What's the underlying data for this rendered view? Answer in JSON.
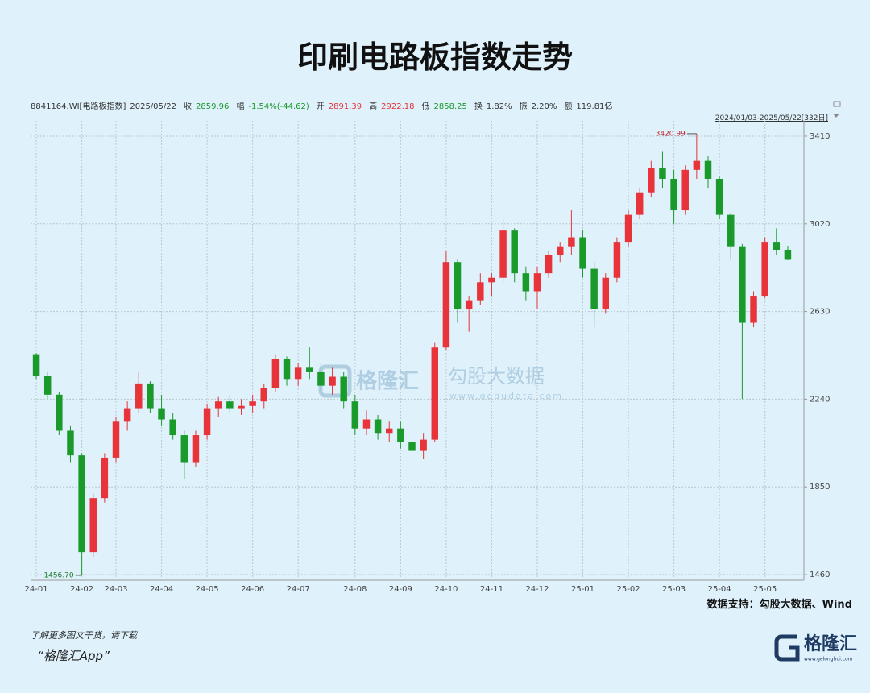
{
  "title": "印刷电路板指数走势",
  "info": [
    {
      "label": "8841164.WI[电路板指数]",
      "value": "2025/05/22",
      "color": "#333333"
    },
    {
      "label": "收",
      "value": "2859.96",
      "color": "#1a9a2a"
    },
    {
      "label": "幅",
      "value": "-1.54%(-44.62)",
      "color": "#1a9a2a"
    },
    {
      "label": "开",
      "value": "2891.39",
      "color": "#e8333a"
    },
    {
      "label": "高",
      "value": "2922.18",
      "color": "#e8333a"
    },
    {
      "label": "低",
      "value": "2858.25",
      "color": "#1a9a2a"
    },
    {
      "label": "换",
      "value": "1.82%",
      "color": "#333333"
    },
    {
      "label": "振",
      "value": "2.20%",
      "color": "#333333"
    },
    {
      "label": "额",
      "value": "119.81亿",
      "color": "#333333"
    }
  ],
  "range_label": "2024/01/03-2025/05/22[332日]",
  "watermark": {
    "brand": "格隆汇",
    "name": "勾股大数据",
    "url": "www.gogudata.com"
  },
  "source": "数据支持：勾股大数据、Wind",
  "footer": {
    "line1": "了解更多图文干货，请下载",
    "line2": "“格隆汇App”"
  },
  "logo": {
    "name": "格隆汇",
    "url": "www.gelonghui.com"
  },
  "chart_data": {
    "type": "candlestick",
    "categories": [
      "24-01",
      null,
      null,
      null,
      "24-02",
      null,
      null,
      "24-03",
      null,
      null,
      null,
      "24-04",
      null,
      null,
      null,
      "24-05",
      null,
      null,
      null,
      "24-06",
      null,
      null,
      null,
      "24-07",
      null,
      null,
      null,
      null,
      "24-08",
      null,
      null,
      null,
      "24-09",
      null,
      null,
      null,
      "24-10",
      null,
      null,
      null,
      "24-11",
      null,
      null,
      null,
      "24-12",
      null,
      null,
      null,
      "25-01",
      null,
      null,
      null,
      "25-02",
      null,
      null,
      null,
      "25-03",
      null,
      null,
      null,
      "25-04",
      null,
      null,
      null,
      "25-05",
      null,
      null
    ],
    "open": [
      2440,
      2345,
      2260,
      2100,
      1990,
      1560,
      1800,
      1980,
      2140,
      2200,
      2310,
      2200,
      2150,
      2080,
      1960,
      2080,
      2200,
      2230,
      2200,
      2210,
      2230,
      2290,
      2420,
      2330,
      2380,
      2360,
      2300,
      2340,
      2230,
      2110,
      2150,
      2090,
      2110,
      2050,
      2010,
      2060,
      2470,
      2850,
      2640,
      2680,
      2760,
      2780,
      2990,
      2800,
      2720,
      2800,
      2880,
      2920,
      2960,
      2820,
      2640,
      2780,
      2940,
      3060,
      3160,
      3270,
      3220,
      3080,
      3260,
      3300,
      3220,
      3060,
      2920,
      2580,
      2700,
      2940,
      2904.58
    ],
    "high": [
      2445,
      2360,
      2270,
      2120,
      2000,
      1820,
      2000,
      2160,
      2230,
      2360,
      2320,
      2260,
      2180,
      2100,
      2100,
      2220,
      2250,
      2260,
      2240,
      2260,
      2310,
      2440,
      2430,
      2400,
      2470,
      2400,
      2380,
      2360,
      2260,
      2190,
      2170,
      2140,
      2140,
      2080,
      2090,
      2490,
      2900,
      2860,
      2700,
      2800,
      2800,
      3040,
      3000,
      2830,
      2830,
      2900,
      2940,
      3080,
      2990,
      2850,
      2800,
      2960,
      3080,
      3180,
      3300,
      3340,
      3260,
      3280,
      3420.99,
      3320,
      3230,
      3070,
      2930,
      2720,
      2960,
      3000,
      2922.18
    ],
    "low": [
      2330,
      2240,
      2080,
      1960,
      1456.7,
      1540,
      1780,
      1960,
      2100,
      2180,
      2180,
      2120,
      2060,
      1885,
      1940,
      2060,
      2160,
      2180,
      2170,
      2180,
      2200,
      2270,
      2300,
      2300,
      2330,
      2280,
      2260,
      2200,
      2080,
      2080,
      2060,
      2050,
      2020,
      1990,
      1975,
      2050,
      2460,
      2580,
      2540,
      2660,
      2700,
      2760,
      2760,
      2680,
      2640,
      2780,
      2850,
      2880,
      2780,
      2560,
      2620,
      2760,
      2920,
      3040,
      3140,
      3180,
      3020,
      3060,
      3220,
      3180,
      3040,
      2860,
      2240,
      2560,
      2690,
      2880,
      2858.25
    ],
    "close": [
      2345,
      2260,
      2100,
      1990,
      1560,
      1800,
      1980,
      2140,
      2200,
      2310,
      2200,
      2150,
      2080,
      1960,
      2080,
      2200,
      2230,
      2200,
      2210,
      2230,
      2290,
      2420,
      2330,
      2380,
      2360,
      2300,
      2340,
      2230,
      2110,
      2150,
      2090,
      2110,
      2050,
      2010,
      2060,
      2470,
      2850,
      2640,
      2680,
      2760,
      2780,
      2990,
      2800,
      2720,
      2800,
      2880,
      2920,
      2960,
      2820,
      2640,
      2780,
      2940,
      3060,
      3160,
      3270,
      3220,
      3080,
      3260,
      3300,
      3220,
      3060,
      2920,
      2580,
      2700,
      2940,
      2904.58,
      2859.96
    ],
    "up_color": "#e8333a",
    "down_color": "#1a9a2a",
    "max_label": 3420.99,
    "min_label": {
      "value": 1456.7,
      "label": "1456.70"
    },
    "ylim": [
      1435,
      3478
    ],
    "yticks": [
      1460,
      1850,
      2240,
      2630,
      3020,
      3410
    ],
    "grid": true
  }
}
